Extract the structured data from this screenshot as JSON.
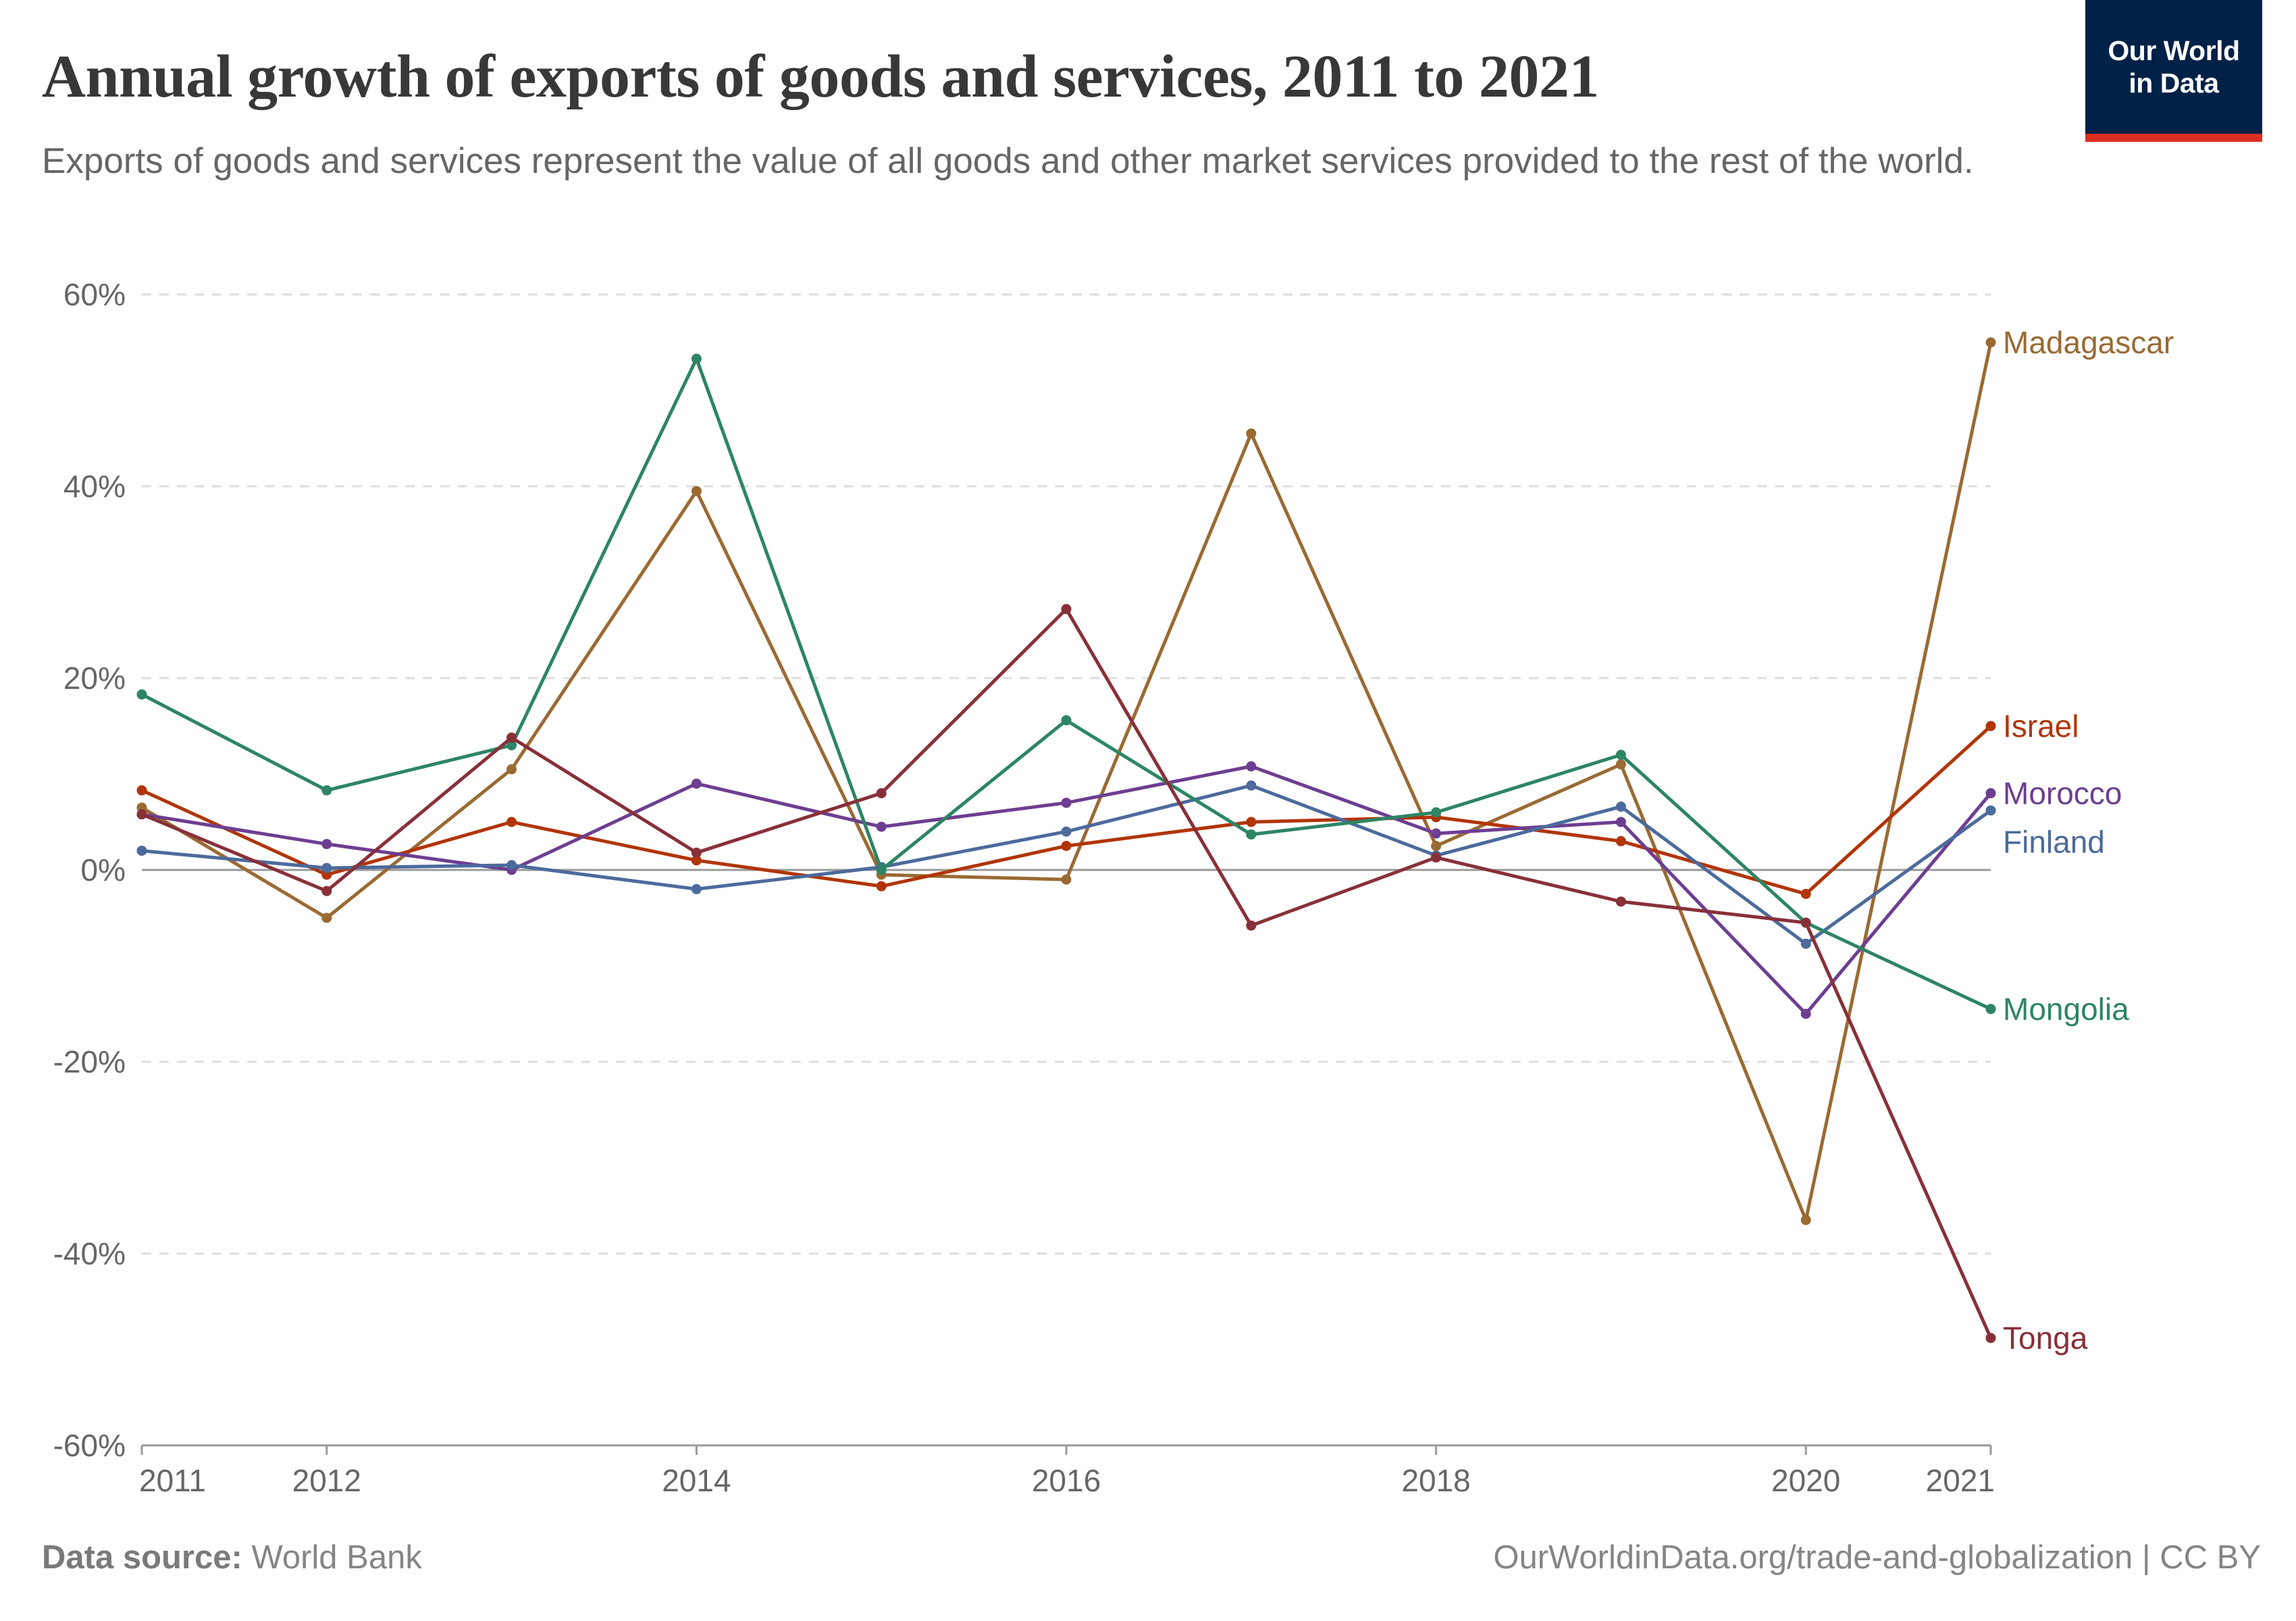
{
  "header": {
    "title": "Annual growth of exports of goods and services, 2011 to 2021",
    "subtitle": "Exports of goods and services represent the value of all goods and other market services provided to the rest of the world."
  },
  "logo": {
    "line1": "Our World",
    "line2": "in Data",
    "bg_color": "#002147",
    "accent_color": "#dc2e23"
  },
  "footer": {
    "source_label": "Data source:",
    "source_value": "World Bank",
    "right_text": "OurWorldinData.org/trade-and-globalization | CC BY"
  },
  "chart_data": {
    "type": "line",
    "x": [
      2011,
      2012,
      2013,
      2014,
      2015,
      2016,
      2017,
      2018,
      2019,
      2020,
      2021
    ],
    "x_tick_labels": [
      "2011",
      "2012",
      "2014",
      "2016",
      "2018",
      "2020",
      "2021"
    ],
    "x_tick_values": [
      2011,
      2012,
      2014,
      2016,
      2018,
      2020,
      2021
    ],
    "y_ticks": [
      60,
      40,
      20,
      0,
      -20,
      -40,
      -60
    ],
    "y_tick_labels": [
      "60%",
      "40%",
      "20%",
      "0%",
      "-20%",
      "-40%",
      "-60%"
    ],
    "ylim": [
      -60,
      60
    ],
    "grid": "horizontal dashed",
    "legend": "line-end labels",
    "series": [
      {
        "name": "Madagascar",
        "color": "#9a6a33",
        "values": [
          6.5,
          -5,
          10.5,
          39.5,
          -0.5,
          -1,
          45.5,
          2.5,
          11,
          -36.5,
          55
        ]
      },
      {
        "name": "Israel",
        "color": "#b13507",
        "values": [
          8.3,
          -0.5,
          5,
          1,
          -1.7,
          2.5,
          5,
          5.5,
          3,
          -2.5,
          15
        ]
      },
      {
        "name": "Morocco",
        "color": "#6d3e91",
        "values": [
          5.8,
          2.7,
          0,
          9,
          4.5,
          7,
          10.8,
          3.8,
          5,
          -15,
          8
        ]
      },
      {
        "name": "Finland",
        "color": "#4c6a9c",
        "values": [
          2,
          0.2,
          0.5,
          -2,
          0.3,
          4,
          8.8,
          1.5,
          6.6,
          -7.7,
          6.2
        ]
      },
      {
        "name": "Mongolia",
        "color": "#2d8564",
        "values": [
          18.3,
          8.3,
          13,
          53.3,
          0,
          15.6,
          3.7,
          6,
          12,
          -5.5,
          -14.5
        ]
      },
      {
        "name": "Tonga",
        "color": "#883039",
        "values": [
          5.8,
          -2.2,
          13.8,
          1.8,
          8,
          27.2,
          -5.8,
          1.3,
          -3.3,
          -5.5,
          -48.8
        ]
      }
    ]
  }
}
